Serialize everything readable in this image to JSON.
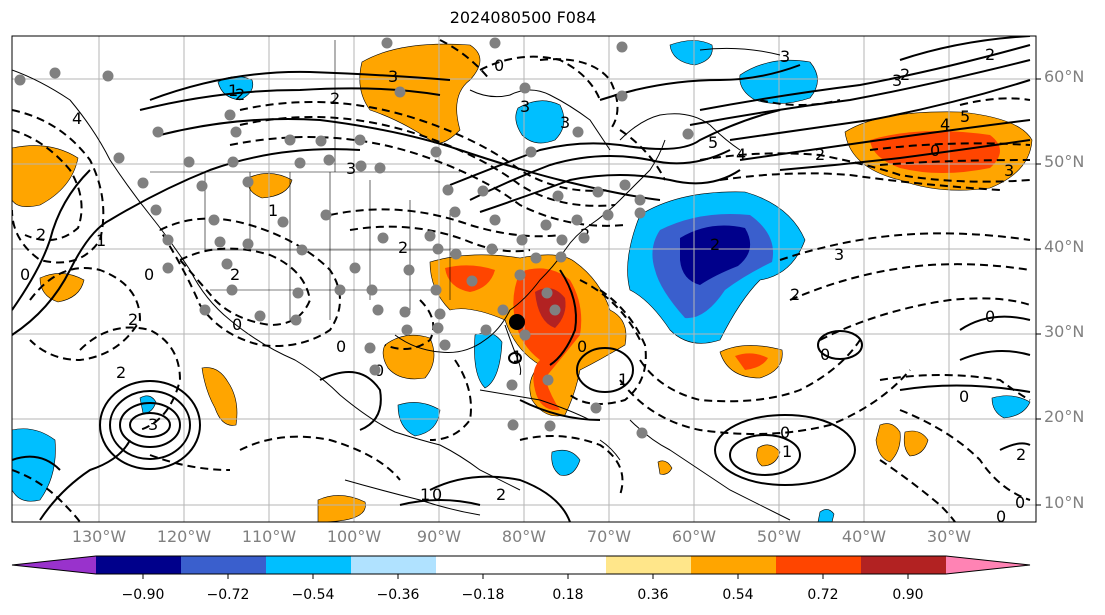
{
  "title": "2024080500 F084",
  "lat_labels": [
    "60°N",
    "50°N",
    "40°N",
    "30°N",
    "20°N",
    "10°N"
  ],
  "lon_labels": [
    "130°W",
    "120°W",
    "110°W",
    "100°W",
    "90°W",
    "80°W",
    "70°W",
    "60°W",
    "50°W",
    "40°W",
    "30°W"
  ],
  "colorbar": {
    "ticks": [
      "−0.90",
      "−0.72",
      "−0.54",
      "−0.36",
      "−0.18",
      "0.18",
      "0.36",
      "0.54",
      "0.72",
      "0.90"
    ],
    "colors": [
      "#9932cc",
      "#00008b",
      "#3a5fcd",
      "#00bfff",
      "#b0e2ff",
      "#ffffff",
      "#ffe68a",
      "#ffa500",
      "#ff4500",
      "#b22222",
      "#ff83b4"
    ]
  }
}
